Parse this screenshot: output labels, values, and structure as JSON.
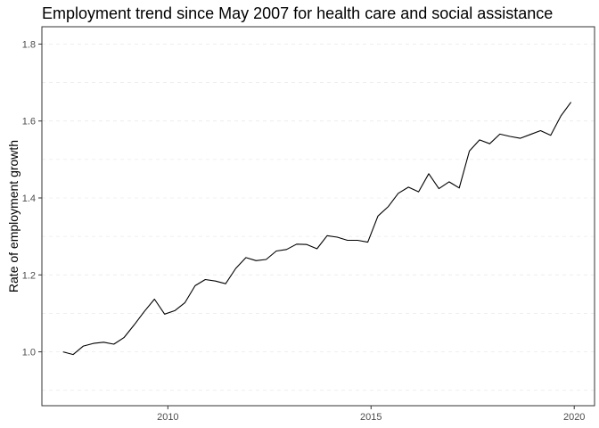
{
  "chart_data": {
    "type": "line",
    "title": "Employment trend since May 2007 for health care and social assistance",
    "xlabel": "",
    "ylabel": "Rate of employment growth",
    "xlim": [
      2006.9,
      2020.5
    ],
    "ylim": [
      0.86,
      1.845
    ],
    "x_ticks": [
      2010,
      2015,
      2020
    ],
    "y_ticks": [
      1.0,
      1.2,
      1.4,
      1.6,
      1.8
    ],
    "y_tick_labels": [
      "1.0",
      "1.2",
      "1.4",
      "1.6",
      "1.8"
    ],
    "grid": "dashed horizontal",
    "legend": "none",
    "line_color": "#000000",
    "series": [
      {
        "x": [
          2007.42,
          2007.67,
          2007.92,
          2008.17,
          2008.42,
          2008.67,
          2008.92,
          2009.17,
          2009.42,
          2009.67,
          2009.92,
          2010.17,
          2010.42,
          2010.67,
          2010.92,
          2011.17,
          2011.42,
          2011.67,
          2011.92,
          2012.17,
          2012.42,
          2012.67,
          2012.92,
          2013.17,
          2013.42,
          2013.67,
          2013.92,
          2014.17,
          2014.42,
          2014.67,
          2014.92,
          2015.17,
          2015.42,
          2015.67,
          2015.92,
          2016.17,
          2016.42,
          2016.67,
          2016.92,
          2017.17,
          2017.42,
          2017.67,
          2017.92,
          2018.17,
          2018.42,
          2018.67,
          2018.92,
          2019.17,
          2019.42,
          2019.67,
          2019.92
        ],
        "values": [
          1.0,
          0.993,
          1.015,
          1.022,
          1.025,
          1.02,
          1.037,
          1.07,
          1.105,
          1.137,
          1.098,
          1.107,
          1.128,
          1.172,
          1.188,
          1.184,
          1.177,
          1.217,
          1.245,
          1.237,
          1.24,
          1.262,
          1.266,
          1.28,
          1.279,
          1.268,
          1.302,
          1.298,
          1.29,
          1.29,
          1.285,
          1.353,
          1.377,
          1.412,
          1.428,
          1.416,
          1.463,
          1.424,
          1.442,
          1.426,
          1.522,
          1.551,
          1.541,
          1.566,
          1.56,
          1.555,
          1.565,
          1.575,
          1.563,
          1.613,
          1.649
        ]
      }
    ]
  }
}
